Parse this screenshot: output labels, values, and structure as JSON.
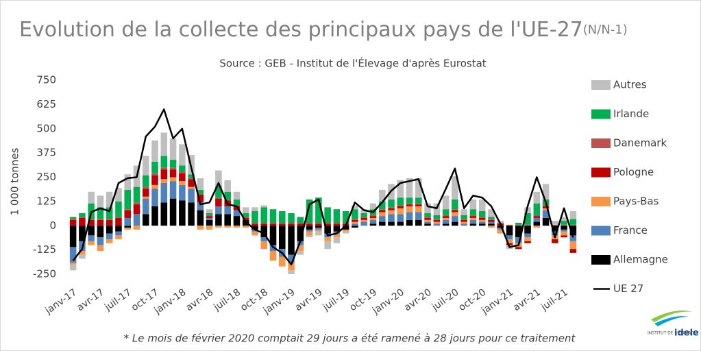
{
  "chart_data": {
    "type": "stacked_bar_line",
    "title": "Evolution de la collecte des principaux pays de l'UE-27",
    "title_suffix": "(N/N-1)",
    "subtitle": "Source : GEB - Institut de l'Élevage d'après Eurostat",
    "y_label": "1 000 tonnes",
    "footnote": "* Le mois de février 2020 comptait 29 jours a été ramené à 28 jours pour ce traitement",
    "logo_text": "INSTITUT DE L'ÉLEVAGE",
    "logo_brand": "idele",
    "categories": [
      "janv-17",
      null,
      null,
      "avr-17",
      null,
      null,
      "juil-17",
      null,
      null,
      "oct-17",
      null,
      null,
      "janv-18",
      null,
      null,
      "avr-18",
      null,
      null,
      "juil-18",
      null,
      null,
      "oct-18",
      null,
      null,
      "janv-19",
      null,
      null,
      "avr-19",
      null,
      null,
      "juil-19",
      null,
      null,
      "oct-19",
      null,
      null,
      "janv-20",
      null,
      null,
      "avr-20",
      null,
      null,
      "juil-20",
      null,
      null,
      "oct-20",
      null,
      null,
      "janv-21",
      null,
      null,
      "avr-21",
      null,
      null,
      "juil-21",
      null
    ],
    "ylim": [
      -250,
      750
    ],
    "yticks": [
      750,
      625,
      500,
      375,
      250,
      125,
      0,
      -125,
      -250
    ],
    "series": [
      {
        "name": "Allemagne",
        "color": "#000000",
        "values": [
          -110,
          -80,
          -50,
          -60,
          -40,
          -30,
          -10,
          0,
          60,
          100,
          120,
          140,
          130,
          120,
          80,
          30,
          60,
          60,
          50,
          30,
          -20,
          -60,
          -100,
          -120,
          -150,
          -80,
          -20,
          -10,
          -40,
          -30,
          -20,
          -10,
          0,
          10,
          20,
          20,
          20,
          30,
          30,
          10,
          0,
          10,
          20,
          0,
          10,
          10,
          10,
          -10,
          -50,
          -60,
          -40,
          20,
          40,
          -30,
          -20,
          -50
        ]
      },
      {
        "name": "France",
        "color": "#4f81bd",
        "values": [
          -80,
          -50,
          -30,
          -40,
          -30,
          -20,
          40,
          60,
          80,
          90,
          100,
          90,
          80,
          70,
          40,
          10,
          40,
          40,
          30,
          0,
          -10,
          -20,
          -30,
          -40,
          -40,
          -20,
          -10,
          -10,
          -20,
          -10,
          0,
          10,
          20,
          20,
          30,
          40,
          40,
          40,
          40,
          10,
          10,
          20,
          30,
          10,
          20,
          10,
          10,
          -10,
          -20,
          -30,
          -20,
          20,
          40,
          -20,
          -10,
          -30
        ]
      },
      {
        "name": "Pays-Bas",
        "color": "#f79646",
        "values": [
          -10,
          -20,
          -20,
          -30,
          -20,
          -20,
          -10,
          -20,
          10,
          20,
          20,
          20,
          20,
          10,
          -20,
          -20,
          -10,
          -10,
          -10,
          -10,
          -20,
          -40,
          -50,
          -50,
          -40,
          -30,
          -20,
          -10,
          -20,
          -20,
          -10,
          10,
          10,
          10,
          20,
          20,
          30,
          30,
          30,
          10,
          10,
          10,
          20,
          10,
          10,
          10,
          -10,
          -20,
          -20,
          -20,
          -20,
          -10,
          10,
          -20,
          -20,
          -40
        ]
      },
      {
        "name": "Pologne",
        "color": "#c00000",
        "values": [
          30,
          40,
          30,
          30,
          30,
          40,
          40,
          50,
          40,
          50,
          50,
          40,
          40,
          40,
          40,
          10,
          40,
          30,
          20,
          10,
          10,
          10,
          10,
          10,
          10,
          10,
          10,
          10,
          10,
          10,
          10,
          10,
          10,
          10,
          10,
          10,
          10,
          10,
          10,
          10,
          10,
          10,
          10,
          10,
          10,
          10,
          10,
          10,
          -10,
          -10,
          -10,
          10,
          10,
          -20,
          -10,
          -20
        ]
      },
      {
        "name": "Danemark",
        "color": "#c0504d",
        "values": [
          5,
          5,
          5,
          5,
          5,
          5,
          5,
          10,
          10,
          10,
          10,
          10,
          10,
          5,
          5,
          5,
          5,
          5,
          5,
          5,
          5,
          5,
          5,
          5,
          5,
          5,
          5,
          5,
          5,
          5,
          5,
          5,
          5,
          5,
          5,
          5,
          5,
          5,
          5,
          5,
          5,
          5,
          5,
          5,
          5,
          5,
          5,
          5,
          5,
          5,
          5,
          5,
          5,
          5,
          5,
          5
        ]
      },
      {
        "name": "Irlande",
        "color": "#00b050",
        "values": [
          10,
          20,
          80,
          60,
          60,
          80,
          100,
          80,
          60,
          60,
          60,
          40,
          30,
          20,
          20,
          10,
          60,
          40,
          30,
          20,
          60,
          80,
          70,
          60,
          50,
          30,
          120,
          130,
          80,
          70,
          60,
          50,
          20,
          30,
          40,
          40,
          40,
          30,
          30,
          20,
          20,
          30,
          50,
          20,
          30,
          30,
          10,
          0,
          0,
          10,
          60,
          60,
          30,
          0,
          20,
          30
        ]
      },
      {
        "name": "Autres",
        "color": "#bfbfbf",
        "values": [
          -30,
          -20,
          60,
          60,
          80,
          70,
          80,
          110,
          100,
          110,
          120,
          110,
          110,
          100,
          60,
          20,
          80,
          60,
          40,
          30,
          20,
          10,
          0,
          0,
          -20,
          -20,
          -10,
          -20,
          -40,
          -30,
          -10,
          20,
          20,
          30,
          60,
          80,
          90,
          100,
          100,
          50,
          60,
          70,
          120,
          30,
          50,
          60,
          40,
          10,
          -20,
          0,
          30,
          60,
          80,
          20,
          20,
          40
        ]
      }
    ],
    "line": {
      "name": "UE 27",
      "color": "#000000",
      "values": [
        -180,
        -120,
        70,
        90,
        75,
        220,
        245,
        250,
        460,
        510,
        600,
        450,
        500,
        300,
        110,
        120,
        220,
        110,
        100,
        20,
        -20,
        -40,
        -110,
        -140,
        -200,
        -80,
        110,
        135,
        -50,
        -40,
        0,
        120,
        80,
        70,
        120,
        180,
        220,
        230,
        240,
        100,
        90,
        190,
        295,
        90,
        155,
        145,
        100,
        10,
        -110,
        -100,
        100,
        250,
        120,
        -60,
        90,
        -60
      ]
    }
  }
}
